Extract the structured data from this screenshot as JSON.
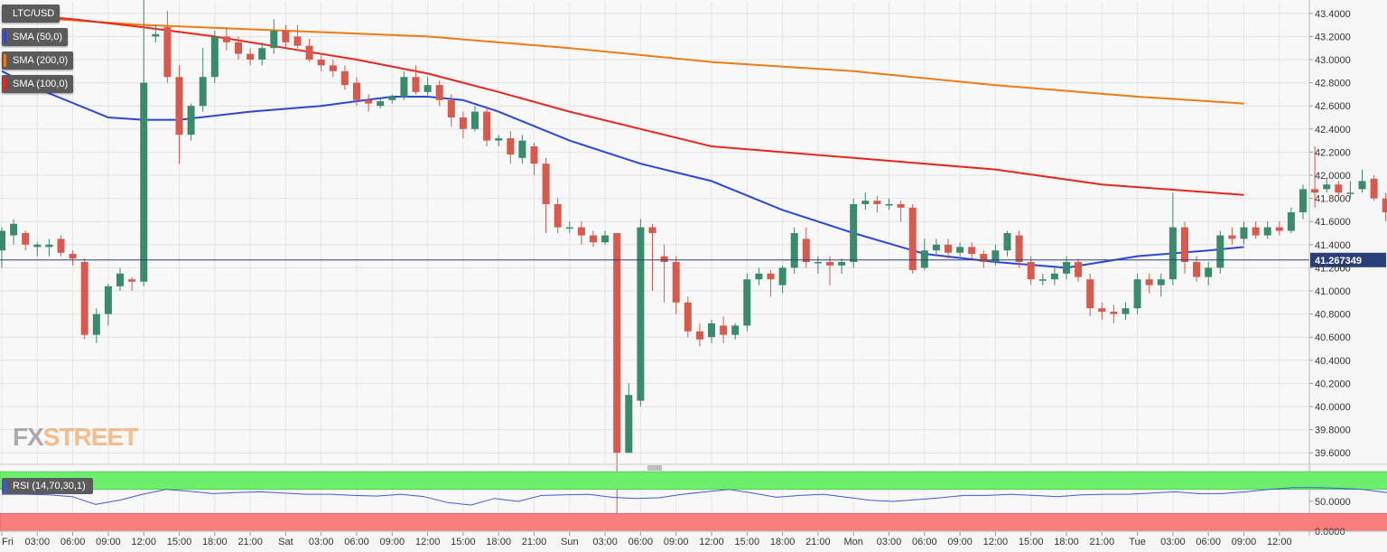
{
  "legend": {
    "pair": "LTC/USD",
    "sma50": "SMA (50,0)",
    "sma200": "SMA (200,0)",
    "sma100": "SMA (100,0)",
    "rsi": "RSI (14,70,30,1)"
  },
  "colors": {
    "bull": "#3a8a6c",
    "bear": "#d9594c",
    "sma50": "#2d46d6",
    "sma100": "#e8261e",
    "sma200": "#f07a14",
    "price_line": "#2a3e7a",
    "rsi_line": "#3d5bd9",
    "rsi_overbought": "#6cf06c",
    "rsi_oversold": "#fb7d7d",
    "watermark_fx": "#8a8a8a",
    "watermark_street": "#f4a45e"
  },
  "watermark": {
    "part1": "FX",
    "part2": "STREET"
  },
  "current_price": "41.267349",
  "chart_data": [
    {
      "type": "candlestick",
      "title": "LTC/USD",
      "ylim": [
        39.5,
        43.5
      ],
      "y_ticks": [
        "43.4000",
        "43.2000",
        "43.0000",
        "42.8000",
        "42.6000",
        "42.4000",
        "42.2000",
        "42.0000",
        "41.8000",
        "41.6000",
        "41.4000",
        "41.2000",
        "41.0000",
        "40.8000",
        "40.6000",
        "40.4000",
        "40.2000",
        "40.0000",
        "39.8000",
        "39.6000"
      ],
      "x_ticks": [
        "Fri",
        "03:00",
        "06:00",
        "09:00",
        "12:00",
        "15:00",
        "18:00",
        "21:00",
        "Sat",
        "03:00",
        "06:00",
        "09:00",
        "12:00",
        "15:00",
        "18:00",
        "21:00",
        "Sun",
        "03:00",
        "06:00",
        "09:00",
        "12:00",
        "15:00",
        "18:00",
        "21:00",
        "Mon",
        "03:00",
        "06:00",
        "09:00",
        "12:00",
        "15:00",
        "18:00",
        "21:00",
        "Tue",
        "03:00",
        "06:00",
        "09:00",
        "12:00"
      ],
      "x_tick_hours": [
        0,
        3,
        6,
        9,
        12,
        15,
        18,
        21,
        24,
        27,
        30,
        33,
        36,
        39,
        42,
        45,
        48,
        51,
        54,
        57,
        60,
        63,
        66,
        69,
        72,
        75,
        78,
        81,
        84,
        87,
        90,
        93,
        96,
        99,
        102,
        105,
        108
      ],
      "candles": [
        [
          41.35,
          41.52,
          41.55,
          41.2
        ],
        [
          41.48,
          41.58,
          41.62,
          41.4
        ],
        [
          41.5,
          41.4,
          41.52,
          41.35
        ],
        [
          41.38,
          41.4,
          41.42,
          41.3
        ],
        [
          41.38,
          41.4,
          41.45,
          41.3
        ],
        [
          41.45,
          41.33,
          41.48,
          41.3
        ],
        [
          41.32,
          41.28,
          41.35,
          41.22
        ],
        [
          41.25,
          40.62,
          41.28,
          40.58
        ],
        [
          40.62,
          40.8,
          40.85,
          40.55
        ],
        [
          40.8,
          41.04,
          41.06,
          40.7
        ],
        [
          41.04,
          41.15,
          41.2,
          41.0
        ],
        [
          41.1,
          41.08,
          41.12,
          41.0
        ],
        [
          41.08,
          42.8,
          43.55,
          41.04
        ],
        [
          43.2,
          43.22,
          43.3,
          43.15
        ],
        [
          43.28,
          42.85,
          43.42,
          42.8
        ],
        [
          42.85,
          42.35,
          42.95,
          42.1
        ],
        [
          42.35,
          42.6,
          42.62,
          42.3
        ],
        [
          42.6,
          42.85,
          43.1,
          42.55
        ],
        [
          42.85,
          43.2,
          43.25,
          42.8
        ],
        [
          43.2,
          43.15,
          43.28,
          43.08
        ],
        [
          43.15,
          43.05,
          43.2,
          43.0
        ],
        [
          43.05,
          43.0,
          43.1,
          42.95
        ],
        [
          43.0,
          43.1,
          43.15,
          42.95
        ],
        [
          43.1,
          43.25,
          43.35,
          43.05
        ],
        [
          43.25,
          43.15,
          43.3,
          43.1
        ],
        [
          43.2,
          43.12,
          43.3,
          43.1
        ],
        [
          43.12,
          43.0,
          43.18,
          42.98
        ],
        [
          43.0,
          42.95,
          43.05,
          42.9
        ],
        [
          42.95,
          42.9,
          43.0,
          42.85
        ],
        [
          42.9,
          42.78,
          42.95,
          42.74
        ],
        [
          42.8,
          42.65,
          42.85,
          42.6
        ],
        [
          42.65,
          42.62,
          42.7,
          42.55
        ],
        [
          42.6,
          42.64,
          42.66,
          42.58
        ],
        [
          42.65,
          42.68,
          42.7,
          42.62
        ],
        [
          42.68,
          42.85,
          42.9,
          42.65
        ],
        [
          42.85,
          42.72,
          42.95,
          42.7
        ],
        [
          42.72,
          42.78,
          42.85,
          42.68
        ],
        [
          42.78,
          42.65,
          42.82,
          42.6
        ],
        [
          42.65,
          42.5,
          42.7,
          42.42
        ],
        [
          42.5,
          42.4,
          42.55,
          42.32
        ],
        [
          42.4,
          42.55,
          42.6,
          42.38
        ],
        [
          42.55,
          42.3,
          42.6,
          42.25
        ],
        [
          42.3,
          42.32,
          42.35,
          42.25
        ],
        [
          42.32,
          42.18,
          42.38,
          42.1
        ],
        [
          42.15,
          42.3,
          42.35,
          42.1
        ],
        [
          42.25,
          42.1,
          42.28,
          42.0
        ],
        [
          42.1,
          41.75,
          42.15,
          41.5
        ],
        [
          41.75,
          41.55,
          41.8,
          41.5
        ],
        [
          41.55,
          41.55,
          41.6,
          41.5
        ],
        [
          41.55,
          41.48,
          41.6,
          41.4
        ],
        [
          41.48,
          41.42,
          41.52,
          41.38
        ],
        [
          41.42,
          41.48,
          41.52,
          41.4
        ],
        [
          41.5,
          39.6,
          41.5,
          39.0
        ],
        [
          39.6,
          40.1,
          40.2,
          39.8
        ],
        [
          40.05,
          41.55,
          41.62,
          40.0
        ],
        [
          41.55,
          41.5,
          41.58,
          41.0
        ],
        [
          41.3,
          41.25,
          41.4,
          40.9
        ],
        [
          41.25,
          40.9,
          41.3,
          40.8
        ],
        [
          40.9,
          40.65,
          40.95,
          40.6
        ],
        [
          40.65,
          40.58,
          40.72,
          40.52
        ],
        [
          40.6,
          40.72,
          40.75,
          40.55
        ],
        [
          40.7,
          40.62,
          40.78,
          40.55
        ],
        [
          40.62,
          40.7,
          40.72,
          40.58
        ],
        [
          40.7,
          41.1,
          41.15,
          40.65
        ],
        [
          41.1,
          41.15,
          41.2,
          41.05
        ],
        [
          41.15,
          41.1,
          41.18,
          40.95
        ],
        [
          41.05,
          41.2,
          41.22,
          40.98
        ],
        [
          41.2,
          41.5,
          41.55,
          41.15
        ],
        [
          41.45,
          41.25,
          41.55,
          41.2
        ],
        [
          41.25,
          41.25,
          41.3,
          41.15
        ],
        [
          41.25,
          41.22,
          41.3,
          41.05
        ],
        [
          41.22,
          41.25,
          41.28,
          41.15
        ],
        [
          41.25,
          41.75,
          41.8,
          41.2
        ],
        [
          41.75,
          41.78,
          41.85,
          41.7
        ],
        [
          41.78,
          41.75,
          41.82,
          41.68
        ],
        [
          41.75,
          41.75,
          41.8,
          41.7
        ],
        [
          41.75,
          41.72,
          41.78,
          41.6
        ],
        [
          41.72,
          41.18,
          41.75,
          41.15
        ],
        [
          41.2,
          41.35,
          41.45,
          41.18
        ],
        [
          41.35,
          41.4,
          41.45,
          41.3
        ],
        [
          41.4,
          41.33,
          41.45,
          41.28
        ],
        [
          41.33,
          41.38,
          41.42,
          41.3
        ],
        [
          41.38,
          41.32,
          41.42,
          41.28
        ],
        [
          41.32,
          41.25,
          41.35,
          41.2
        ],
        [
          41.25,
          41.35,
          41.4,
          41.22
        ],
        [
          41.35,
          41.5,
          41.52,
          41.3
        ],
        [
          41.48,
          41.25,
          41.52,
          41.2
        ],
        [
          41.25,
          41.1,
          41.3,
          41.05
        ],
        [
          41.1,
          41.1,
          41.15,
          41.05
        ],
        [
          41.1,
          41.15,
          41.2,
          41.05
        ],
        [
          41.15,
          41.25,
          41.3,
          41.1
        ],
        [
          41.25,
          41.12,
          41.28,
          41.08
        ],
        [
          41.1,
          40.85,
          41.15,
          40.78
        ],
        [
          40.85,
          40.82,
          40.9,
          40.75
        ],
        [
          40.82,
          40.8,
          40.88,
          40.72
        ],
        [
          40.8,
          40.85,
          40.9,
          40.75
        ],
        [
          40.85,
          41.1,
          41.15,
          40.8
        ],
        [
          41.1,
          41.05,
          41.15,
          40.98
        ],
        [
          41.05,
          41.1,
          41.15,
          40.95
        ],
        [
          41.1,
          41.55,
          41.85,
          41.05
        ],
        [
          41.55,
          41.25,
          41.6,
          41.15
        ],
        [
          41.25,
          41.12,
          41.3,
          41.08
        ],
        [
          41.12,
          41.2,
          41.25,
          41.05
        ],
        [
          41.2,
          41.48,
          41.52,
          41.15
        ],
        [
          41.48,
          41.45,
          41.55,
          41.4
        ],
        [
          41.45,
          41.55,
          41.6,
          41.4
        ],
        [
          41.55,
          41.48,
          41.6,
          41.45
        ],
        [
          41.48,
          41.55,
          41.6,
          41.45
        ],
        [
          41.55,
          41.52,
          41.6,
          41.48
        ],
        [
          41.52,
          41.68,
          41.72,
          41.5
        ],
        [
          41.68,
          41.88,
          41.92,
          41.62
        ],
        [
          41.88,
          41.85,
          42.25,
          41.72
        ],
        [
          41.88,
          41.92,
          41.98,
          41.85
        ],
        [
          41.92,
          41.85,
          41.95,
          41.82
        ],
        [
          41.85,
          41.85,
          41.95,
          41.8
        ],
        [
          41.88,
          41.95,
          42.05,
          41.85
        ],
        [
          41.97,
          41.8,
          42.0,
          41.78
        ],
        [
          41.8,
          41.68,
          41.85,
          41.6
        ],
        [
          41.68,
          41.45,
          41.7,
          41.4
        ],
        [
          41.45,
          41.22,
          41.5,
          41.2
        ],
        [
          41.22,
          41.45,
          41.52,
          41.2
        ],
        [
          41.47,
          41.27,
          41.5,
          41.25
        ]
      ],
      "series": [
        {
          "name": "SMA (200,0)",
          "x": [
            0,
            12,
            24,
            36,
            48,
            60,
            72,
            84,
            96,
            105
          ],
          "values": [
            43.38,
            43.3,
            43.25,
            43.2,
            43.1,
            42.98,
            42.9,
            42.78,
            42.68,
            42.62
          ]
        },
        {
          "name": "SMA (100,0)",
          "x": [
            0,
            6,
            12,
            18,
            24,
            30,
            36,
            42,
            48,
            60,
            66,
            72,
            84,
            93,
            105
          ],
          "values": [
            43.4,
            43.35,
            43.28,
            43.2,
            43.1,
            43.0,
            42.88,
            42.72,
            42.55,
            42.25,
            42.2,
            42.15,
            42.05,
            41.92,
            41.83
          ]
        },
        {
          "name": "SMA (50,0)",
          "x": [
            0,
            3,
            9,
            12,
            15,
            21,
            27,
            33,
            36,
            39,
            42,
            48,
            54,
            60,
            66,
            72,
            78,
            84,
            90,
            93,
            96,
            102,
            105
          ],
          "values": [
            42.9,
            42.75,
            42.5,
            42.48,
            42.48,
            42.55,
            42.6,
            42.68,
            42.68,
            42.65,
            42.55,
            42.3,
            42.1,
            41.95,
            41.7,
            41.5,
            41.32,
            41.25,
            41.2,
            41.25,
            41.3,
            41.35,
            41.38
          ]
        }
      ]
    },
    {
      "type": "line",
      "title": "RSI (14,70,30,1)",
      "ylim": [
        0,
        100
      ],
      "y_ticks": [
        "50.0000",
        "0.0000"
      ],
      "overbought": 70,
      "oversold": 30,
      "values": [
        62,
        62,
        61,
        58,
        45,
        52,
        62,
        70,
        67,
        63,
        65,
        66,
        64,
        62,
        62,
        60,
        59,
        62,
        58,
        48,
        44,
        55,
        50,
        60,
        61,
        62,
        57,
        55,
        56,
        62,
        66,
        70,
        64,
        57,
        60,
        62,
        57,
        52,
        50,
        53,
        56,
        60,
        60,
        62,
        60,
        58,
        61,
        62,
        62,
        64,
        66,
        63,
        63,
        66,
        70,
        73,
        73,
        72,
        70,
        65,
        60,
        62
      ]
    }
  ]
}
